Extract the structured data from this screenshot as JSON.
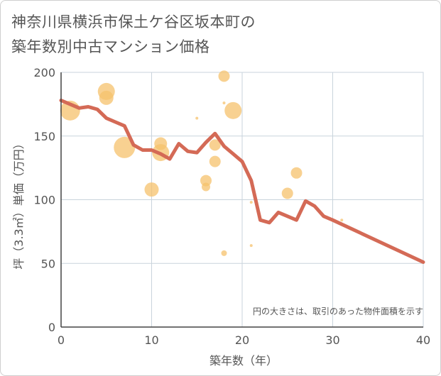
{
  "chart_data": {
    "type": "scatter",
    "title_lines": [
      "神奈川県横浜市保土ケ谷区坂本町の",
      "築年数別中古マンション価格"
    ],
    "xlabel": "築年数（年）",
    "ylabel": "坪（3.3㎡）単価（万円）",
    "xlim": [
      0,
      40
    ],
    "ylim": [
      0,
      200
    ],
    "x_ticks": [
      0,
      10,
      20,
      30,
      40
    ],
    "y_ticks": [
      0,
      50,
      100,
      150,
      200
    ],
    "grid": true,
    "note": "円の大きさは、取引のあった物件面積を示す",
    "colors": {
      "bubble": "#f5c16c",
      "line": "#d46a56"
    },
    "bubbles": [
      {
        "x": 1,
        "y": 170,
        "size": 14
      },
      {
        "x": 5,
        "y": 185,
        "size": 12
      },
      {
        "x": 5,
        "y": 180,
        "size": 10
      },
      {
        "x": 7,
        "y": 141,
        "size": 15
      },
      {
        "x": 10,
        "y": 108,
        "size": 10
      },
      {
        "x": 11,
        "y": 144,
        "size": 9
      },
      {
        "x": 11,
        "y": 137,
        "size": 12
      },
      {
        "x": 15,
        "y": 164,
        "size": 2
      },
      {
        "x": 16,
        "y": 115,
        "size": 8
      },
      {
        "x": 16,
        "y": 110,
        "size": 6
      },
      {
        "x": 17,
        "y": 143,
        "size": 8
      },
      {
        "x": 17,
        "y": 130,
        "size": 8
      },
      {
        "x": 18,
        "y": 197,
        "size": 8
      },
      {
        "x": 18,
        "y": 176,
        "size": 2
      },
      {
        "x": 18,
        "y": 58,
        "size": 4
      },
      {
        "x": 19,
        "y": 170,
        "size": 12
      },
      {
        "x": 21,
        "y": 98,
        "size": 2
      },
      {
        "x": 21,
        "y": 64,
        "size": 2
      },
      {
        "x": 25,
        "y": 105,
        "size": 8
      },
      {
        "x": 26,
        "y": 121,
        "size": 8
      },
      {
        "x": 31,
        "y": 84,
        "size": 2
      }
    ],
    "line": {
      "x": [
        0,
        1,
        2,
        3,
        4,
        5,
        6,
        7,
        8,
        9,
        10,
        11,
        12,
        13,
        14,
        15,
        16,
        17,
        18,
        19,
        20,
        21,
        22,
        23,
        24,
        25,
        26,
        27,
        28,
        29,
        30,
        40
      ],
      "y": [
        178,
        175,
        172,
        173,
        171,
        164,
        161,
        158,
        143,
        139,
        139,
        136,
        132,
        144,
        138,
        137,
        145,
        152,
        142,
        136,
        130,
        115,
        84,
        82,
        90,
        87,
        84,
        99,
        95,
        87,
        84,
        51
      ]
    }
  }
}
